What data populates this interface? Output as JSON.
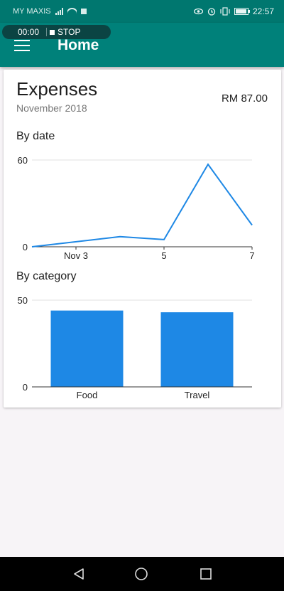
{
  "status_bar": {
    "carrier": "MY MAXIS",
    "time": "22:57",
    "icons": [
      "signal-icon",
      "wifi-icon",
      "notification-square-icon",
      "eye-icon",
      "alarm-icon",
      "vibrate-icon",
      "battery-icon"
    ]
  },
  "recorder": {
    "time": "00:00",
    "stop_label": "STOP"
  },
  "app_bar": {
    "title": "Home",
    "menu_icon": "hamburger-menu-icon",
    "background": "#00817a"
  },
  "expenses_card": {
    "title": "Expenses",
    "subtitle": "November 2018",
    "total": "RM 87.00"
  },
  "sections": {
    "by_date_label": "By date",
    "by_category_label": "By category"
  },
  "chart_data": [
    {
      "type": "line",
      "title": "By date",
      "x": [
        2,
        4,
        5,
        6,
        7
      ],
      "y": [
        0,
        7,
        5,
        57,
        15
      ],
      "x_tick_labels": [
        {
          "value": 3,
          "label": "Nov 3"
        },
        {
          "value": 5,
          "label": "5"
        },
        {
          "value": 7,
          "label": "7"
        }
      ],
      "y_tick_labels": [
        "0",
        "60"
      ],
      "xlim": [
        2,
        7
      ],
      "ylim": [
        0,
        60
      ],
      "color": "#1e88e5",
      "grid": true
    },
    {
      "type": "bar",
      "title": "By category",
      "categories": [
        "Food",
        "Travel"
      ],
      "values": [
        44,
        43
      ],
      "y_tick_labels": [
        "0",
        "50"
      ],
      "ylim": [
        0,
        50
      ],
      "color": "#1e88e5",
      "grid": true
    }
  ],
  "nav_bar": {
    "icons": [
      "back-icon",
      "home-icon",
      "recents-icon"
    ]
  }
}
